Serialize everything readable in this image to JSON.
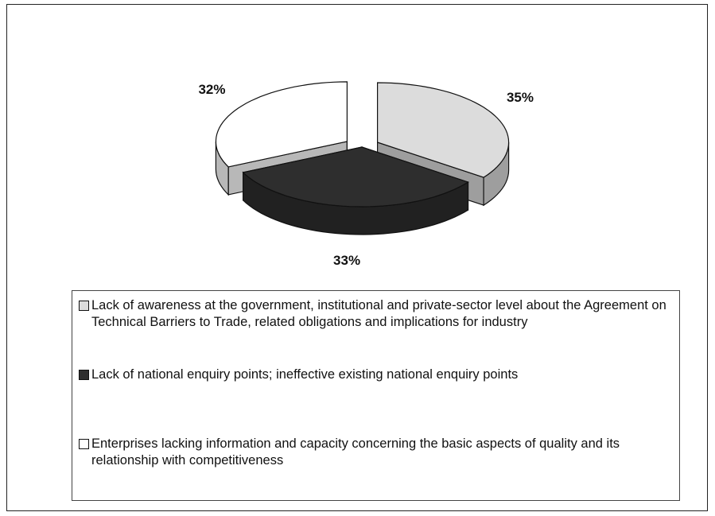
{
  "chart_data": {
    "type": "pie3d",
    "categories": [
      "Lack of awareness at the government, institutional and private-sector level about the Agreement on Technical Barriers to Trade, related obligations and implications for industry",
      "Lack of national enquiry points; ineffective existing national enquiry points",
      "Enterprises lacking information and capacity concerning the basic aspects of quality and its relationship with competitiveness"
    ],
    "values": [
      35,
      33,
      32
    ],
    "value_labels": [
      "35%",
      "33%",
      "32%"
    ],
    "colors": [
      "#dcdcdc",
      "#2e2e2e",
      "#ffffff"
    ],
    "explode": [
      true,
      false,
      true
    ],
    "legend": "bottom"
  }
}
